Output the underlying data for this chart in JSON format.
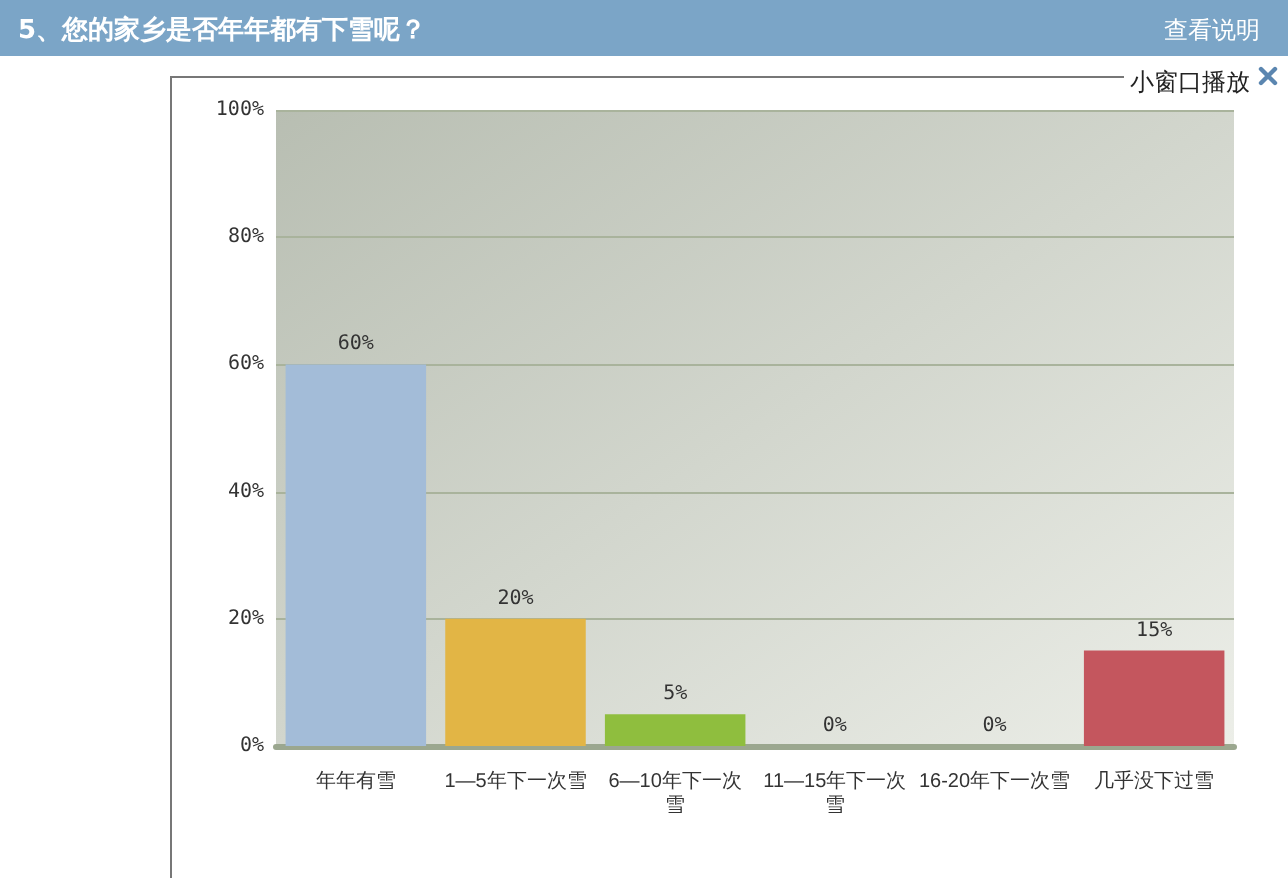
{
  "chart_data": {
    "type": "bar",
    "title": "5、您的家乡是否年年都有下雪呢？",
    "categories": [
      "年年有雪",
      "1—5年下一次雪",
      "6—10年下一次雪",
      "11—15年下一次雪",
      "16-20年下一次雪",
      "几乎没下过雪"
    ],
    "values": [
      60,
      20,
      5,
      0,
      0,
      15
    ],
    "colors": [
      "#a3bcd8",
      "#e2b545",
      "#8fbe3e",
      "#f2a47a",
      "#48a8b2",
      "#c4565e"
    ],
    "value_labels": [
      "60%",
      "20%",
      "5%",
      "0%",
      "0%",
      "15%"
    ],
    "ylim": [
      0,
      100
    ],
    "yticks": [
      {
        "value": 0,
        "label": "0%"
      },
      {
        "value": 20,
        "label": "20%"
      },
      {
        "value": 40,
        "label": "40%"
      },
      {
        "value": 60,
        "label": "60%"
      },
      {
        "value": 80,
        "label": "80%"
      },
      {
        "value": 100,
        "label": "100%"
      }
    ],
    "grid": "y",
    "annotations": [
      "查看说明",
      "小窗口播放"
    ]
  }
}
